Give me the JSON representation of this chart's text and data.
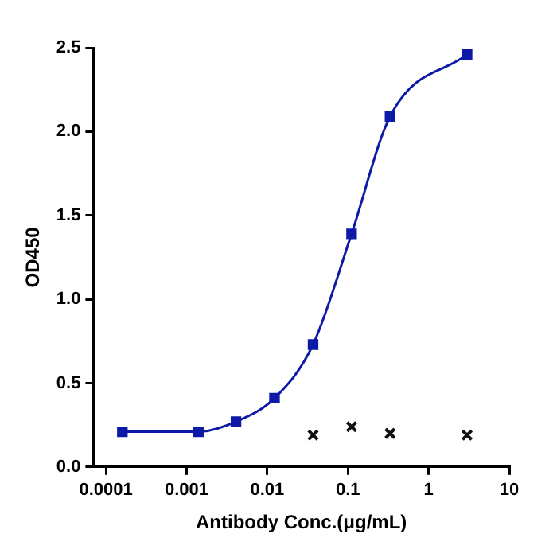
{
  "chart_data": {
    "type": "scatter",
    "xlabel": "Antibody Conc.(μg/mL)",
    "ylabel": "OD450",
    "log": "x",
    "xlim": [
      7e-05,
      10
    ],
    "xticks": [
      0.0001,
      0.001,
      0.01,
      0.1,
      1,
      10
    ],
    "ylim": [
      0,
      2.5
    ],
    "yticks": [
      {
        "value": 0,
        "label": "0.0"
      },
      {
        "value": 0.5,
        "label": "0.5"
      },
      {
        "value": 1,
        "label": "1.0"
      },
      {
        "value": 1.5,
        "label": "1.5"
      },
      {
        "value": 2,
        "label": "2.0"
      },
      {
        "value": 2.5,
        "label": "2.5"
      }
    ],
    "grid": false,
    "legend": false,
    "series": [
      {
        "type": "line",
        "marker": "square",
        "color": "#0d1aa6",
        "x": [
          0.00016,
          0.0014,
          0.0041,
          0.0123,
          0.037,
          0.111,
          0.333,
          3
        ],
        "values": [
          0.21,
          0.21,
          0.27,
          0.41,
          0.73,
          1.39,
          2.09,
          2.46
        ]
      },
      {
        "type": "scatter",
        "marker": "cross",
        "color": "#111111",
        "x": [
          0.037,
          0.111,
          0.333,
          3
        ],
        "values": [
          0.19,
          0.24,
          0.2,
          0.19
        ]
      }
    ]
  }
}
